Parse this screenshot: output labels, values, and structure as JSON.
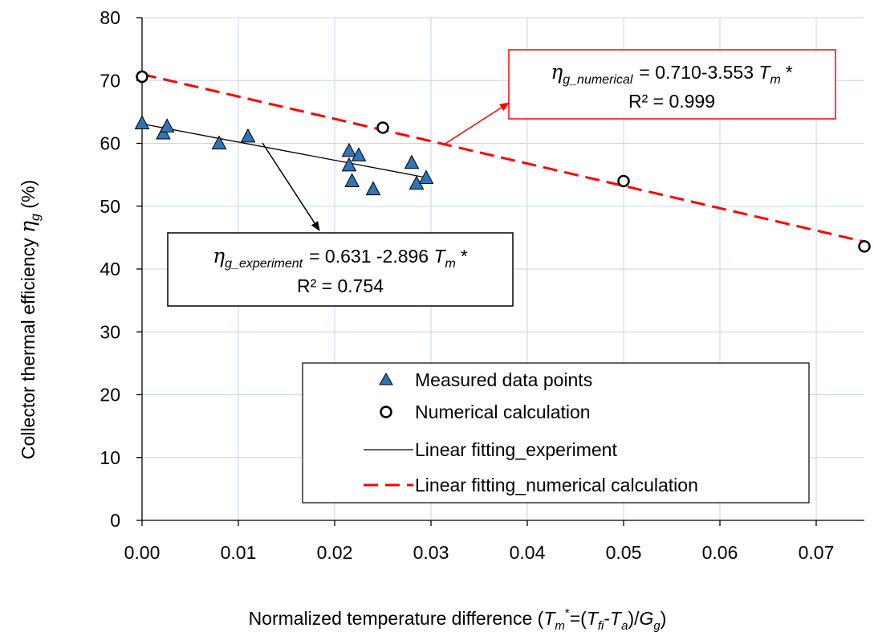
{
  "chart_data": {
    "type": "scatter",
    "xlim": [
      0,
      0.075
    ],
    "ylim": [
      0,
      80
    ],
    "x_ticks": [
      0,
      0.01,
      0.02,
      0.03,
      0.04,
      0.05,
      0.06,
      0.07
    ],
    "x_tick_labels": [
      "0.00",
      "0.01",
      "0.02",
      "0.03",
      "0.04",
      "0.05",
      "0.06",
      "0.07"
    ],
    "y_ticks": [
      0,
      10,
      20,
      30,
      40,
      50,
      60,
      70,
      80
    ],
    "y_tick_labels": [
      "0",
      "10",
      "20",
      "30",
      "40",
      "50",
      "60",
      "70",
      "80"
    ],
    "grid": true,
    "xlabel": {
      "prefix": "Normalized temperature difference (",
      "tm": "T",
      "tm_sub": "m",
      "tm_sup": "*",
      "eq": "=(",
      "tf": "T",
      "tf_sub": "fi",
      "dash": "-",
      "ta": "T",
      "ta_sub": "a",
      "slash": ")/",
      "g": "G",
      "g_sub": "g",
      "close": ")"
    },
    "ylabel": {
      "prefix": "Collector thermal efficiency ",
      "eta": "η",
      "eta_sub": "g",
      "suffix": " (%)"
    },
    "series": [
      {
        "name": "Measured data points",
        "marker": "triangle",
        "color": "#2e75b6",
        "points": [
          [
            0.0,
            63.2
          ],
          [
            0.0022,
            61.6
          ],
          [
            0.0026,
            62.7
          ],
          [
            0.008,
            60.0
          ],
          [
            0.011,
            61.1
          ],
          [
            0.0215,
            58.8
          ],
          [
            0.0215,
            56.5
          ],
          [
            0.0218,
            54.0
          ],
          [
            0.0225,
            58.1
          ],
          [
            0.024,
            52.7
          ],
          [
            0.028,
            56.9
          ],
          [
            0.0285,
            53.6
          ],
          [
            0.0295,
            54.5
          ]
        ]
      },
      {
        "name": "Numerical calculation",
        "marker": "open-circle",
        "color": "#000000",
        "points": [
          [
            0.0,
            70.6
          ],
          [
            0.025,
            62.5
          ],
          [
            0.05,
            54.0
          ],
          [
            0.075,
            43.6
          ]
        ]
      },
      {
        "name": "Linear fitting_experiment",
        "marker": "line",
        "color": "#000000",
        "x_range": [
          0,
          0.0295
        ],
        "intercept": 63.1,
        "slope": -289.6
      },
      {
        "name": "Linear fitting_numerical calculation",
        "marker": "dashed-line",
        "color": "#ff0000",
        "x_range": [
          0,
          0.075
        ],
        "intercept": 71.0,
        "slope": -355.3
      }
    ],
    "legend_position": "bottom-right",
    "annotations": [
      {
        "id": "numerical",
        "eta": "η",
        "eta_sub": "g_numerical",
        "eq_text": "= 0.710-3.553 ",
        "tm": "T",
        "tm_sub": "m",
        "star": "*",
        "r2": "R² = 0.999",
        "border_color": "#ff0000",
        "arrow_color": "#ff0000"
      },
      {
        "id": "experiment",
        "eta": "η",
        "eta_sub": "g_experiment",
        "eq_text": "= 0.631 -2.896 ",
        "tm": "T",
        "tm_sub": "m",
        "star": "*",
        "r2": "R² = 0.754",
        "border_color": "#000000",
        "arrow_color": "#000000"
      }
    ]
  }
}
